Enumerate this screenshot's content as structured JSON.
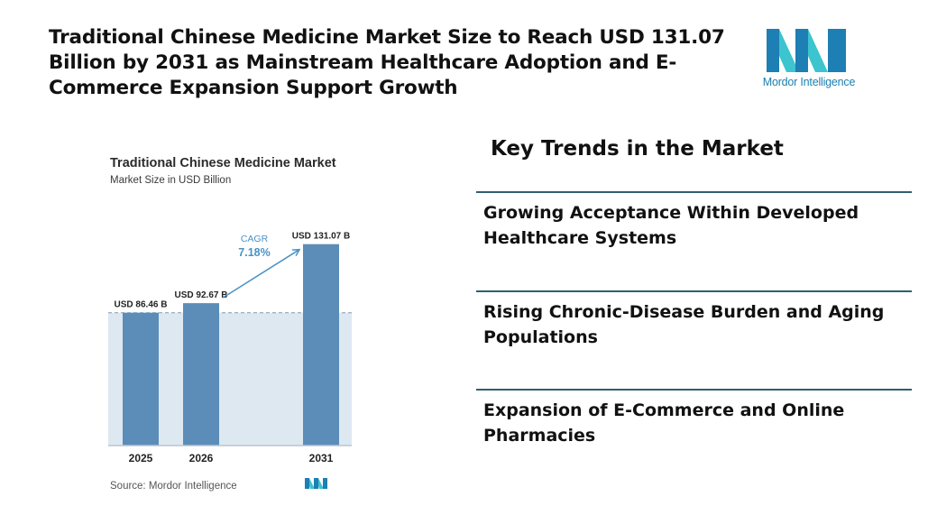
{
  "headline": "Traditional Chinese Medicine Market Size to Reach USD 131.07 Billion by 2031 as Mainstream Healthcare Adoption and E-Commerce Expansion Support Growth",
  "logo": {
    "text": "Mordor Intelligence",
    "colors": {
      "dark": "#1d7fb3",
      "light": "#3cc4cf"
    }
  },
  "chart_data": {
    "type": "bar",
    "title": "Traditional Chinese Medicine Market",
    "subtitle": "Market Size in USD Billion",
    "categories": [
      "2025",
      "2026",
      "2031"
    ],
    "values": [
      86.46,
      92.67,
      131.07
    ],
    "value_labels": [
      "USD 86.46 B",
      "USD 92.67 B",
      "USD 131.07 B"
    ],
    "ylim": [
      0,
      135
    ],
    "cagr_label": "CAGR",
    "cagr_value": "7.18%",
    "source": "Source:  Mordor Intelligence",
    "colors": {
      "bar": "#5b8db8",
      "band": "#dde8f1",
      "accent": "#4a92c6",
      "axis": "#b8c6d2"
    }
  },
  "trends": {
    "title": "Key Trends in the Market",
    "items": [
      "Growing Acceptance Within Developed Healthcare Systems",
      "Rising Chronic-Disease Burden and Aging Populations",
      "Expansion of E-Commerce and Online Pharmacies"
    ]
  }
}
